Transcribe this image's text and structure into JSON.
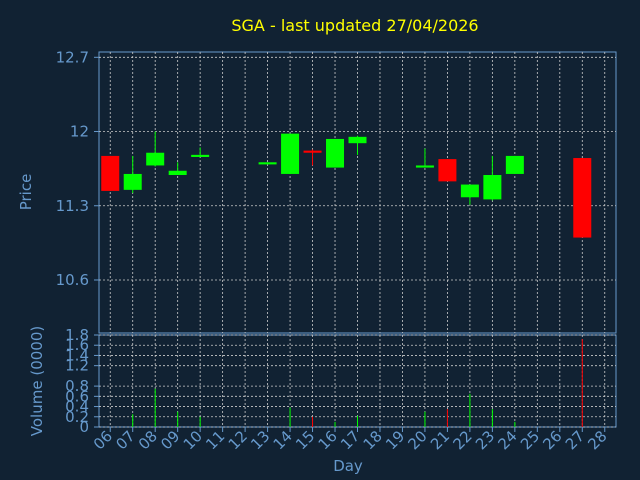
{
  "chart_data": [
    {
      "type": "candlestick",
      "title": "SGA - last updated 27/04/2026",
      "ylabel": "Price",
      "ylim": [
        10.1,
        12.75
      ],
      "yticks": [
        10.6,
        11.3,
        12,
        12.7
      ],
      "ytick_labels": [
        "10.6",
        "11.3",
        "12",
        "12.7"
      ],
      "grid": true,
      "candles": [
        {
          "day": "06",
          "open": 11.77,
          "close": 11.44,
          "high": 11.77,
          "low": 11.44
        },
        {
          "day": "07",
          "open": 11.45,
          "close": 11.6,
          "high": 11.77,
          "low": 11.42
        },
        {
          "day": "08",
          "open": 11.68,
          "close": 11.8,
          "high": 12.0,
          "low": 11.67
        },
        {
          "day": "09",
          "open": 11.59,
          "close": 11.63,
          "high": 11.71,
          "low": 11.59
        },
        {
          "day": "10",
          "open": 11.76,
          "close": 11.78,
          "high": 11.85,
          "low": 11.76
        },
        {
          "day": "13",
          "open": 11.69,
          "close": 11.71,
          "high": 11.71,
          "low": 11.69
        },
        {
          "day": "14",
          "open": 11.6,
          "close": 11.98,
          "high": 11.98,
          "low": 11.6
        },
        {
          "day": "15",
          "open": 11.82,
          "close": 11.8,
          "high": 11.83,
          "low": 11.68
        },
        {
          "day": "16",
          "open": 11.66,
          "close": 11.93,
          "high": 11.93,
          "low": 11.66
        },
        {
          "day": "17",
          "open": 11.89,
          "close": 11.95,
          "high": 11.96,
          "low": 11.78
        },
        {
          "day": "20",
          "open": 11.66,
          "close": 11.68,
          "high": 11.84,
          "low": 11.66
        },
        {
          "day": "21",
          "open": 11.74,
          "close": 11.53,
          "high": 11.74,
          "low": 11.53
        },
        {
          "day": "22",
          "open": 11.38,
          "close": 11.5,
          "high": 11.5,
          "low": 11.31
        },
        {
          "day": "23",
          "open": 11.36,
          "close": 11.59,
          "high": 11.77,
          "low": 11.35
        },
        {
          "day": "24",
          "open": 11.6,
          "close": 11.77,
          "high": 11.77,
          "low": 11.6
        },
        {
          "day": "27",
          "open": 11.75,
          "close": 11.0,
          "high": 11.75,
          "low": 11.0
        }
      ],
      "colors": {
        "up": "#00ff00",
        "down": "#ff0000"
      }
    },
    {
      "type": "bar",
      "xlabel": "Day",
      "ylabel": "Volume (0000)",
      "ylim": [
        0,
        1.8
      ],
      "yticks": [
        0,
        0.2,
        0.4,
        0.6,
        0.8,
        1.2,
        1.4,
        1.6,
        1.8
      ],
      "ytick_labels": [
        "0",
        "0.2",
        "0.4",
        "0.6",
        "0.8",
        "1.2",
        "1.4",
        "1.6",
        "1.8"
      ],
      "grid": true,
      "categories": [
        "06",
        "07",
        "08",
        "09",
        "10",
        "11",
        "12",
        "13",
        "14",
        "15",
        "16",
        "17",
        "18",
        "19",
        "20",
        "21",
        "22",
        "23",
        "24",
        "25",
        "26",
        "27",
        "28"
      ],
      "volumes": [
        {
          "day": "07",
          "value": 0.25,
          "direction": "up"
        },
        {
          "day": "08",
          "value": 0.75,
          "direction": "up"
        },
        {
          "day": "09",
          "value": 0.3,
          "direction": "up"
        },
        {
          "day": "10",
          "value": 0.2,
          "direction": "up"
        },
        {
          "day": "14",
          "value": 0.38,
          "direction": "up"
        },
        {
          "day": "15",
          "value": 0.2,
          "direction": "down"
        },
        {
          "day": "16",
          "value": 0.1,
          "direction": "up"
        },
        {
          "day": "17",
          "value": 0.22,
          "direction": "up"
        },
        {
          "day": "20",
          "value": 0.3,
          "direction": "up"
        },
        {
          "day": "21",
          "value": 0.35,
          "direction": "down"
        },
        {
          "day": "22",
          "value": 0.65,
          "direction": "up"
        },
        {
          "day": "23",
          "value": 0.35,
          "direction": "up"
        },
        {
          "day": "24",
          "value": 0.1,
          "direction": "up"
        },
        {
          "day": "27",
          "value": 1.72,
          "direction": "down"
        }
      ],
      "colors": {
        "up": "#00ff00",
        "down": "#ff0000"
      }
    }
  ],
  "colors": {
    "background": "#112233",
    "title": "#ffff00",
    "axis_text": "#6699cc",
    "axis_line": "#6699cc",
    "grid": "#cccccc"
  }
}
